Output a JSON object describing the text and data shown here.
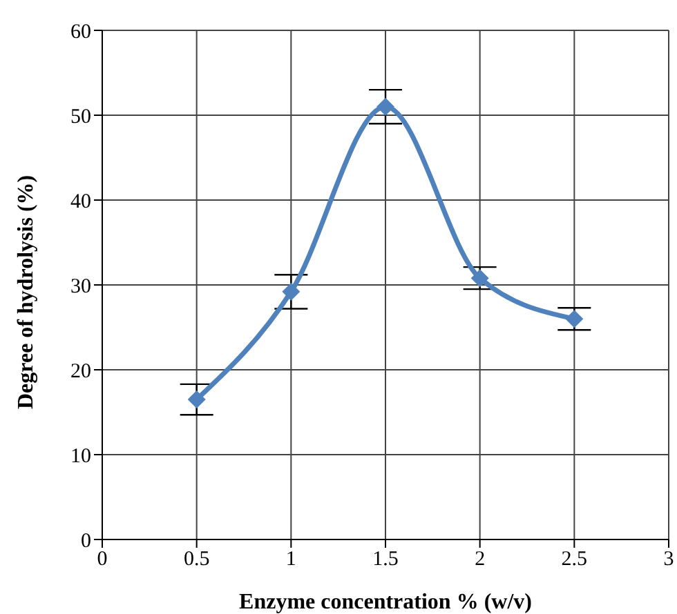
{
  "chart_data": {
    "type": "line",
    "xlabel": "Enzyme concentration % (w/v)",
    "ylabel": "Degree of hydrolysis (%)",
    "x": [
      0.5,
      1,
      1.5,
      2,
      2.5
    ],
    "series": [
      {
        "color": "#4f81bd",
        "values": [
          16.5,
          29.2,
          51,
          30.8,
          26
        ],
        "errors": [
          1.8,
          2,
          2,
          1.3,
          1.3
        ]
      }
    ],
    "xlim": [
      0,
      3
    ],
    "xticks": [
      0,
      0.5,
      1,
      1.5,
      2,
      2.5,
      3
    ],
    "ylim": [
      0,
      60
    ],
    "yticks": [
      0,
      10,
      20,
      30,
      40,
      50,
      60
    ],
    "grid": true,
    "marker": "diamond",
    "line_style": "solid"
  }
}
